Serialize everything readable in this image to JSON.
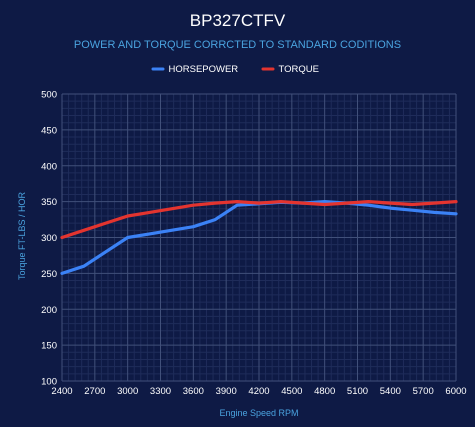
{
  "chart_data": {
    "type": "line",
    "title": "BP327CTFV",
    "subtitle": "POWER AND TORQUE CORRCTED TO STANDARD CODITIONS",
    "xlabel": "Engine Speed RPM",
    "ylabel": "Torque FT-LBS / HOR",
    "ylim": [
      100,
      500
    ],
    "xlim": [
      2400,
      6000
    ],
    "y_ticks": [
      "100",
      "150",
      "200",
      "250",
      "300",
      "350",
      "400",
      "450",
      "500"
    ],
    "x_ticks": [
      "2400",
      "2700",
      "3000",
      "3300",
      "3600",
      "3900",
      "4200",
      "4500",
      "4800",
      "5100",
      "5400",
      "5700",
      "6000"
    ],
    "grid": true,
    "legend_position": "top-center",
    "x": [
      2400,
      2600,
      2800,
      3000,
      3200,
      3400,
      3600,
      3800,
      4000,
      4200,
      4400,
      4600,
      4800,
      5000,
      5200,
      5400,
      5600,
      5800,
      6000
    ],
    "series": [
      {
        "name": "HORSEPOWER",
        "color": "#3b82f6",
        "values": [
          250,
          260,
          280,
          300,
          305,
          310,
          315,
          325,
          345,
          347,
          349,
          348,
          350,
          348,
          345,
          341,
          338,
          335,
          333
        ]
      },
      {
        "name": "TORQUE",
        "color": "#e3342f",
        "values": [
          300,
          310,
          320,
          330,
          335,
          340,
          345,
          348,
          350,
          348,
          350,
          348,
          346,
          348,
          350,
          348,
          346,
          348,
          350
        ]
      }
    ]
  },
  "colors": {
    "background": "#0e1a45",
    "grid_major": "#41507a",
    "grid_minor": "#1f2c5a",
    "title": "#ffffff",
    "subtitle": "#4aa3df",
    "axis_label": "#4aa3df",
    "tick_text": "#ffffff"
  }
}
